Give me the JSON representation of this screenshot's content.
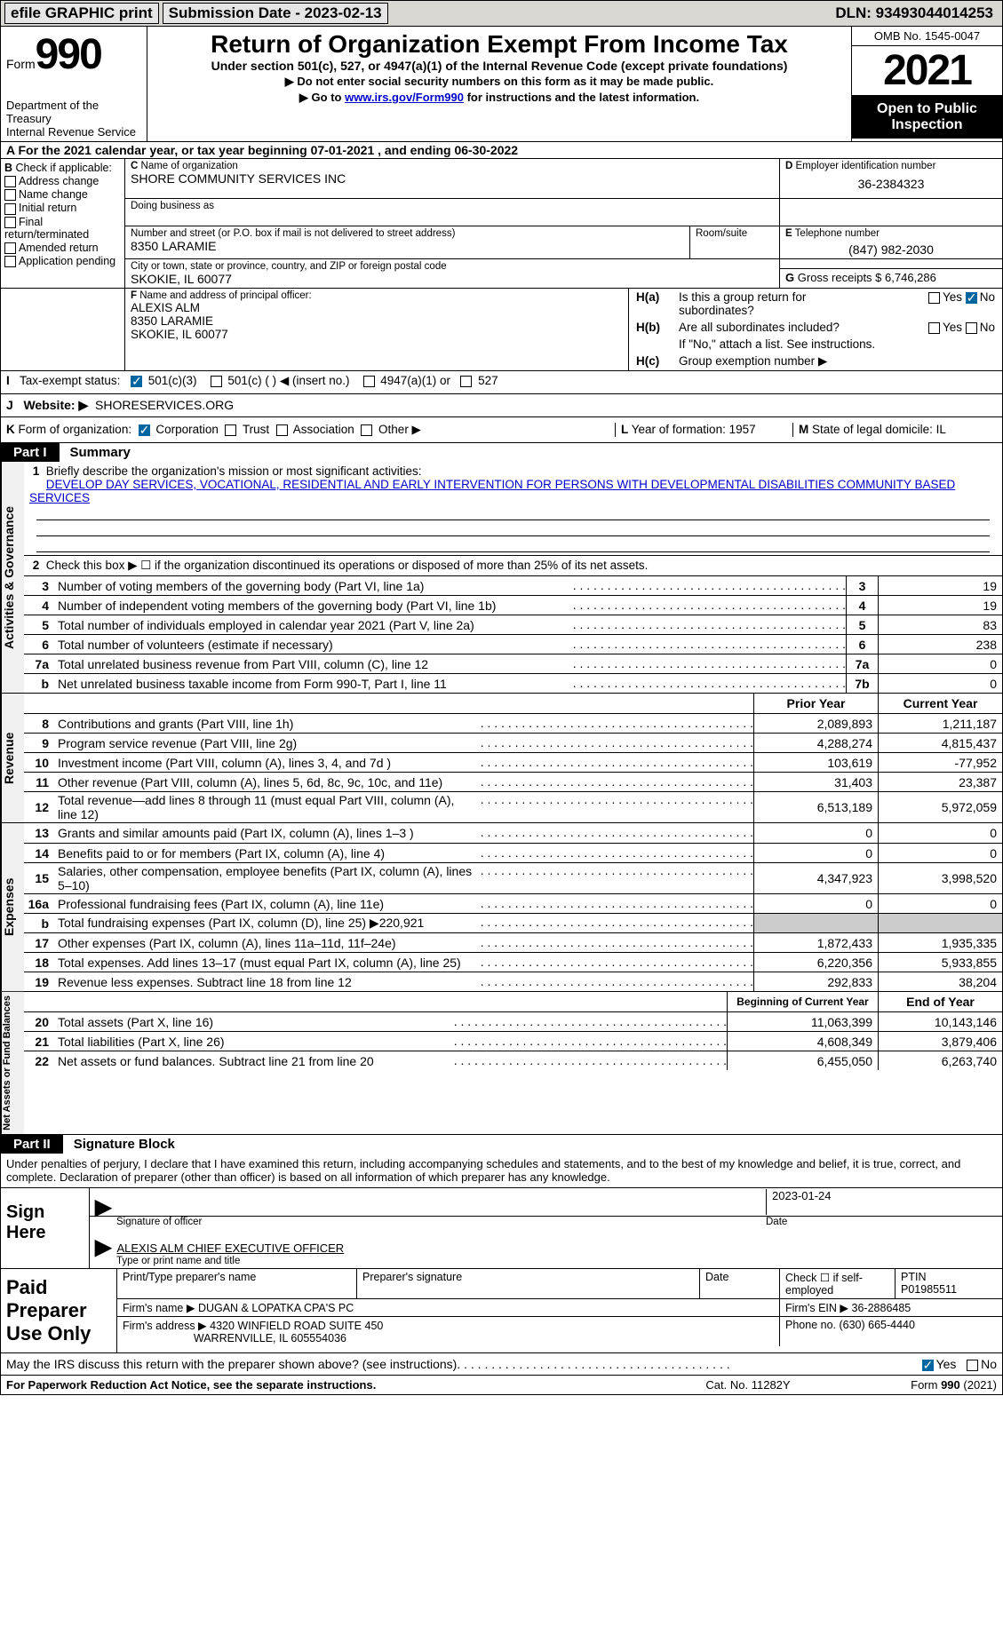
{
  "top": {
    "efile": "efile GRAPHIC print",
    "submission": "Submission Date - 2023-02-13",
    "dln": "DLN: 93493044014253"
  },
  "header": {
    "form_word": "Form",
    "form_num": "990",
    "dept": "Department of the Treasury",
    "irs": "Internal Revenue Service",
    "title": "Return of Organization Exempt From Income Tax",
    "sub": "Under section 501(c), 527, or 4947(a)(1) of the Internal Revenue Code (except private foundations)",
    "note1": "Do not enter social security numbers on this form as it may be made public.",
    "note2_pre": "Go to ",
    "note2_link": "www.irs.gov/Form990",
    "note2_post": " for instructions and the latest information.",
    "omb": "OMB No. 1545-0047",
    "year": "2021",
    "open": "Open to Public Inspection"
  },
  "period": "For the 2021 calendar year, or tax year beginning 07-01-2021   , and ending 06-30-2022",
  "B": {
    "hdr": "Check if applicable:",
    "items": [
      "Address change",
      "Name change",
      "Initial return",
      "Final return/terminated",
      "Amended return",
      "Application pending"
    ]
  },
  "C": {
    "name_lbl": "Name of organization",
    "name": "SHORE COMMUNITY SERVICES INC",
    "dba_lbl": "Doing business as",
    "addr_lbl": "Number and street (or P.O. box if mail is not delivered to street address)",
    "room_lbl": "Room/suite",
    "addr": "8350 LARAMIE",
    "city_lbl": "City or town, state or province, country, and ZIP or foreign postal code",
    "city": "SKOKIE, IL  60077"
  },
  "D": {
    "lbl": "Employer identification number",
    "val": "36-2384323"
  },
  "E": {
    "lbl": "Telephone number",
    "val": "(847) 982-2030"
  },
  "G": {
    "lbl": "Gross receipts $",
    "val": "6,746,286"
  },
  "F": {
    "lbl": "Name and address of principal officer:",
    "name": "ALEXIS ALM",
    "addr": "8350 LARAMIE",
    "city": "SKOKIE, IL  60077"
  },
  "H": {
    "a_q": "Is this a group return for subordinates?",
    "b_q": "Are all subordinates included?",
    "b_note": "If \"No,\" attach a list. See instructions.",
    "c_q": "Group exemption number ▶",
    "yes": "Yes",
    "no": "No"
  },
  "I": {
    "lbl": "Tax-exempt status:",
    "o1": "501(c)(3)",
    "o2": "501(c) (  ) ◀ (insert no.)",
    "o3": "4947(a)(1) or",
    "o4": "527"
  },
  "J": {
    "lbl": "Website: ▶",
    "val": "SHORESERVICES.ORG"
  },
  "K": {
    "lbl": "Form of organization:",
    "o1": "Corporation",
    "o2": "Trust",
    "o3": "Association",
    "o4": "Other ▶"
  },
  "L": {
    "lbl": "Year of formation:",
    "val": "1957"
  },
  "M": {
    "lbl": "State of legal domicile:",
    "val": "IL"
  },
  "partI": {
    "num": "Part I",
    "title": "Summary"
  },
  "briefly": {
    "lbl": "Briefly describe the organization's mission or most significant activities:",
    "val": "DEVELOP DAY SERVICES, VOCATIONAL, RESIDENTIAL AND EARLY INTERVENTION FOR PERSONS WITH DEVELOPMENTAL DISABILITIES COMMUNITY BASED SERVICES"
  },
  "line2": "Check this box ▶ ☐ if the organization discontinued its operations or disposed of more than 25% of its net assets.",
  "gov_lines": [
    {
      "n": "3",
      "d": "Number of voting members of the governing body (Part VI, line 1a)",
      "b": "3",
      "v": "19"
    },
    {
      "n": "4",
      "d": "Number of independent voting members of the governing body (Part VI, line 1b)",
      "b": "4",
      "v": "19"
    },
    {
      "n": "5",
      "d": "Total number of individuals employed in calendar year 2021 (Part V, line 2a)",
      "b": "5",
      "v": "83"
    },
    {
      "n": "6",
      "d": "Total number of volunteers (estimate if necessary)",
      "b": "6",
      "v": "238"
    },
    {
      "n": "7a",
      "d": "Total unrelated business revenue from Part VIII, column (C), line 12",
      "b": "7a",
      "v": "0"
    },
    {
      "n": "b",
      "d": "Net unrelated business taxable income from Form 990-T, Part I, line 11",
      "b": "7b",
      "v": "0"
    }
  ],
  "col_hdr": {
    "py": "Prior Year",
    "cy": "Current Year"
  },
  "rev_lines": [
    {
      "n": "8",
      "d": "Contributions and grants (Part VIII, line 1h)",
      "py": "2,089,893",
      "cy": "1,211,187"
    },
    {
      "n": "9",
      "d": "Program service revenue (Part VIII, line 2g)",
      "py": "4,288,274",
      "cy": "4,815,437"
    },
    {
      "n": "10",
      "d": "Investment income (Part VIII, column (A), lines 3, 4, and 7d )",
      "py": "103,619",
      "cy": "-77,952"
    },
    {
      "n": "11",
      "d": "Other revenue (Part VIII, column (A), lines 5, 6d, 8c, 9c, 10c, and 11e)",
      "py": "31,403",
      "cy": "23,387"
    },
    {
      "n": "12",
      "d": "Total revenue—add lines 8 through 11 (must equal Part VIII, column (A), line 12)",
      "py": "6,513,189",
      "cy": "5,972,059"
    }
  ],
  "exp_lines": [
    {
      "n": "13",
      "d": "Grants and similar amounts paid (Part IX, column (A), lines 1–3 )",
      "py": "0",
      "cy": "0"
    },
    {
      "n": "14",
      "d": "Benefits paid to or for members (Part IX, column (A), line 4)",
      "py": "0",
      "cy": "0"
    },
    {
      "n": "15",
      "d": "Salaries, other compensation, employee benefits (Part IX, column (A), lines 5–10)",
      "py": "4,347,923",
      "cy": "3,998,520"
    },
    {
      "n": "16a",
      "d": "Professional fundraising fees (Part IX, column (A), line 11e)",
      "py": "0",
      "cy": "0"
    },
    {
      "n": "b",
      "d": "Total fundraising expenses (Part IX, column (D), line 25) ▶220,921",
      "py": "SHADE",
      "cy": "SHADE"
    },
    {
      "n": "17",
      "d": "Other expenses (Part IX, column (A), lines 11a–11d, 11f–24e)",
      "py": "1,872,433",
      "cy": "1,935,335"
    },
    {
      "n": "18",
      "d": "Total expenses. Add lines 13–17 (must equal Part IX, column (A), line 25)",
      "py": "6,220,356",
      "cy": "5,933,855"
    },
    {
      "n": "19",
      "d": "Revenue less expenses. Subtract line 18 from line 12",
      "py": "292,833",
      "cy": "38,204"
    }
  ],
  "na_hdr": {
    "py": "Beginning of Current Year",
    "cy": "End of Year"
  },
  "na_lines": [
    {
      "n": "20",
      "d": "Total assets (Part X, line 16)",
      "py": "11,063,399",
      "cy": "10,143,146"
    },
    {
      "n": "21",
      "d": "Total liabilities (Part X, line 26)",
      "py": "4,608,349",
      "cy": "3,879,406"
    },
    {
      "n": "22",
      "d": "Net assets or fund balances. Subtract line 21 from line 20",
      "py": "6,455,050",
      "cy": "6,263,740"
    }
  ],
  "vtabs": {
    "gov": "Activities & Governance",
    "rev": "Revenue",
    "exp": "Expenses",
    "na": "Net Assets or Fund Balances"
  },
  "partII": {
    "num": "Part II",
    "title": "Signature Block"
  },
  "declare": "Under penalties of perjury, I declare that I have examined this return, including accompanying schedules and statements, and to the best of my knowledge and belief, it is true, correct, and complete. Declaration of preparer (other than officer) is based on all information of which preparer has any knowledge.",
  "sign": {
    "here": "Sign Here",
    "sig_lbl": "Signature of officer",
    "date_lbl": "Date",
    "date": "2023-01-24",
    "name": "ALEXIS ALM  CHIEF EXECUTIVE OFFICER",
    "name_lbl": "Type or print name and title"
  },
  "prep": {
    "title": "Paid Preparer Use Only",
    "r1": {
      "c1": "Print/Type preparer's name",
      "c2": "Preparer's signature",
      "c3": "Date",
      "c4_lbl": "Check ☐ if self-employed",
      "c5_lbl": "PTIN",
      "c5": "P01985511"
    },
    "r2": {
      "lbl": "Firm's name    ▶",
      "val": "DUGAN & LOPATKA CPA'S PC",
      "ein_lbl": "Firm's EIN ▶",
      "ein": "36-2886485"
    },
    "r3": {
      "lbl": "Firm's address ▶",
      "val1": "4320 WINFIELD ROAD SUITE 450",
      "val2": "WARRENVILLE, IL  605554036",
      "ph_lbl": "Phone no.",
      "ph": "(630) 665-4440"
    }
  },
  "discuss": {
    "q": "May the IRS discuss this return with the preparer shown above? (see instructions)",
    "yes": "Yes",
    "no": "No"
  },
  "footer": {
    "left": "For Paperwork Reduction Act Notice, see the separate instructions.",
    "mid": "Cat. No. 11282Y",
    "right": "Form 990 (2021)"
  }
}
